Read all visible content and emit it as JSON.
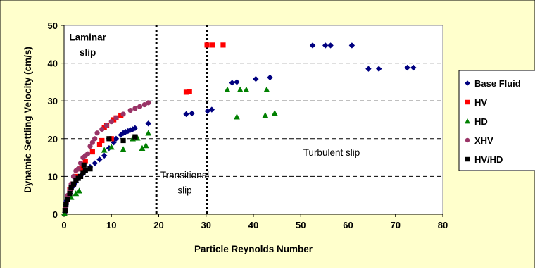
{
  "chart_data": {
    "type": "scatter",
    "xlabel": "Particle Reynolds Number",
    "ylabel": "Dynamic Settling Velocity (cm/s)",
    "xlim": [
      0,
      80
    ],
    "ylim": [
      0,
      50
    ],
    "x_ticks": [
      "0",
      "10",
      "20",
      "30",
      "40",
      "50",
      "60",
      "70",
      "80"
    ],
    "y_ticks": [
      "0",
      "10",
      "20",
      "30",
      "40",
      "50"
    ],
    "grid": "horizontal dashed",
    "legend_position": "right",
    "colors": {
      "background": "#FFFFCC",
      "plot_area": "#FFFFFF",
      "gridline": "#000000"
    },
    "regime_boundaries": [
      19.5,
      30.2
    ],
    "annotations": [
      {
        "text": "Laminar",
        "style": "bold",
        "x": 5,
        "y": 46
      },
      {
        "text": "slip",
        "style": "bold",
        "x": 5,
        "y": 42
      },
      {
        "text": "Transitional",
        "style": "normal",
        "x": 25.5,
        "y": 9.5
      },
      {
        "text": "slip",
        "style": "normal",
        "x": 25.5,
        "y": 5.5
      },
      {
        "text": "Turbulent slip",
        "style": "normal",
        "x": 56.5,
        "y": 15.5
      }
    ],
    "series": [
      {
        "name": "Base Fluid",
        "marker": "diamond",
        "color": "#000080",
        "points": [
          [
            0.2,
            0.5
          ],
          [
            0.3,
            1.5
          ],
          [
            0.4,
            2.5
          ],
          [
            0.5,
            3.5
          ],
          [
            0.8,
            4.5
          ],
          [
            1.2,
            5.5
          ],
          [
            1.5,
            6.5
          ],
          [
            2.0,
            7.5
          ],
          [
            2.5,
            8.5
          ],
          [
            3.0,
            9.5
          ],
          [
            3.5,
            10.2
          ],
          [
            4.0,
            10.8
          ],
          [
            4.5,
            11.5
          ],
          [
            5.5,
            12.5
          ],
          [
            6.5,
            13.5
          ],
          [
            7.5,
            14.5
          ],
          [
            8.5,
            15.5
          ],
          [
            9.5,
            17.5
          ],
          [
            10.5,
            19.0
          ],
          [
            11.0,
            20.0
          ],
          [
            12.0,
            21.0
          ],
          [
            12.5,
            21.5
          ],
          [
            13.0,
            21.8
          ],
          [
            13.5,
            22.0
          ],
          [
            14.0,
            22.3
          ],
          [
            14.5,
            22.5
          ],
          [
            15.0,
            22.8
          ],
          [
            17.8,
            24.0
          ],
          [
            25.8,
            26.5
          ],
          [
            27.0,
            26.7
          ],
          [
            30.3,
            27.3
          ],
          [
            31.2,
            27.7
          ],
          [
            35.5,
            34.8
          ],
          [
            36.5,
            35.0
          ],
          [
            40.5,
            35.8
          ],
          [
            43.5,
            36.2
          ],
          [
            52.5,
            44.7
          ],
          [
            55.2,
            44.7
          ],
          [
            56.3,
            44.7
          ],
          [
            60.8,
            44.7
          ],
          [
            64.3,
            38.5
          ],
          [
            66.5,
            38.5
          ],
          [
            72.5,
            38.8
          ],
          [
            73.8,
            38.8
          ]
        ]
      },
      {
        "name": "HV",
        "marker": "square",
        "color": "#FF0000",
        "points": [
          [
            0.3,
            1.0
          ],
          [
            0.8,
            4.5
          ],
          [
            1.2,
            6.5
          ],
          [
            1.8,
            8.0
          ],
          [
            2.5,
            10.0
          ],
          [
            3.5,
            12.0
          ],
          [
            4.5,
            14.0
          ],
          [
            6.0,
            16.5
          ],
          [
            7.5,
            18.5
          ],
          [
            8.0,
            19.5
          ],
          [
            8.5,
            23.0
          ],
          [
            9.0,
            23.5
          ],
          [
            10.0,
            20.0
          ],
          [
            10.5,
            25.0
          ],
          [
            11.0,
            25.5
          ],
          [
            12.0,
            26.2
          ],
          [
            25.8,
            32.3
          ],
          [
            26.5,
            32.5
          ],
          [
            30.2,
            44.8
          ],
          [
            31.3,
            44.8
          ],
          [
            33.6,
            44.8
          ]
        ]
      },
      {
        "name": "HD",
        "marker": "triangle",
        "color": "#008000",
        "points": [
          [
            0.1,
            0.2
          ],
          [
            1.5,
            4.5
          ],
          [
            2.5,
            5.5
          ],
          [
            3.2,
            6.2
          ],
          [
            8.5,
            17.0
          ],
          [
            10.0,
            17.8
          ],
          [
            12.5,
            17.2
          ],
          [
            14.5,
            20.0
          ],
          [
            15.5,
            20.2
          ],
          [
            16.5,
            17.5
          ],
          [
            17.3,
            18.2
          ],
          [
            17.8,
            21.5
          ],
          [
            34.5,
            33.0
          ],
          [
            36.5,
            25.8
          ],
          [
            37.2,
            33.0
          ],
          [
            38.5,
            33.0
          ],
          [
            42.5,
            26.2
          ],
          [
            42.8,
            33.0
          ],
          [
            44.5,
            26.8
          ]
        ]
      },
      {
        "name": "XHV",
        "marker": "circle",
        "color": "#993366",
        "points": [
          [
            0.2,
            1.5
          ],
          [
            0.5,
            3.0
          ],
          [
            0.8,
            5.0
          ],
          [
            1.2,
            6.5
          ],
          [
            1.5,
            8.0
          ],
          [
            2.0,
            10.0
          ],
          [
            2.5,
            11.5
          ],
          [
            3.0,
            12.0
          ],
          [
            3.5,
            13.5
          ],
          [
            4.0,
            15.0
          ],
          [
            4.5,
            15.5
          ],
          [
            5.0,
            16.0
          ],
          [
            5.5,
            18.0
          ],
          [
            6.0,
            19.0
          ],
          [
            6.5,
            20.0
          ],
          [
            7.0,
            21.5
          ],
          [
            8.0,
            22.5
          ],
          [
            9.0,
            23.5
          ],
          [
            10.0,
            24.5
          ],
          [
            11.0,
            25.5
          ],
          [
            12.5,
            26.5
          ],
          [
            14.0,
            27.5
          ],
          [
            15.0,
            28.0
          ],
          [
            16.0,
            28.5
          ],
          [
            17.0,
            29.0
          ],
          [
            17.8,
            29.5
          ]
        ]
      },
      {
        "name": "HV/HD",
        "marker": "square",
        "color": "#000000",
        "points": [
          [
            0.2,
            1.0
          ],
          [
            0.4,
            2.5
          ],
          [
            0.8,
            4.0
          ],
          [
            1.2,
            5.5
          ],
          [
            1.5,
            7.0
          ],
          [
            2.0,
            8.0
          ],
          [
            2.5,
            9.0
          ],
          [
            3.0,
            9.5
          ],
          [
            3.5,
            10.0
          ],
          [
            4.0,
            11.0
          ],
          [
            4.5,
            11.5
          ],
          [
            5.5,
            12.0
          ],
          [
            4.2,
            13.0
          ],
          [
            9.5,
            20.0
          ],
          [
            12.5,
            19.5
          ],
          [
            15.0,
            20.5
          ]
        ]
      }
    ]
  }
}
